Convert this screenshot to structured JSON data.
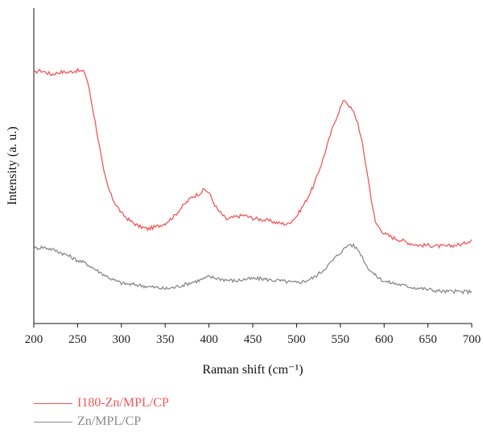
{
  "chart_data": {
    "type": "line",
    "title": "",
    "xlabel": "Raman shift (cm⁻¹)",
    "ylabel": "Intensity (a. u.)",
    "xlim": [
      200,
      700
    ],
    "ylim": [
      0,
      1
    ],
    "x_ticks": [
      "200",
      "250",
      "300",
      "350",
      "400",
      "450",
      "500",
      "550",
      "600",
      "650",
      "700"
    ],
    "y_ticks_shown": false,
    "grid": false,
    "legend_position": "bottom-left, below plot",
    "series": [
      {
        "name": "I180-Zn/MPL/CP",
        "color": "#f0585a",
        "x": [
          200,
          205,
          210,
          220,
          230,
          240,
          250,
          258,
          262,
          266,
          270,
          275,
          280,
          285,
          290,
          300,
          310,
          320,
          330,
          340,
          350,
          360,
          370,
          380,
          390,
          395,
          400,
          405,
          410,
          420,
          430,
          440,
          450,
          460,
          470,
          480,
          490,
          500,
          510,
          520,
          530,
          540,
          545,
          550,
          555,
          560,
          565,
          570,
          575,
          580,
          585,
          590,
          600,
          610,
          620,
          630,
          640,
          650,
          660,
          670,
          680,
          690,
          700
        ],
        "y": [
          0.792,
          0.802,
          0.8,
          0.79,
          0.797,
          0.797,
          0.802,
          0.797,
          0.76,
          0.7,
          0.64,
          0.56,
          0.48,
          0.43,
          0.395,
          0.35,
          0.325,
          0.308,
          0.3,
          0.307,
          0.318,
          0.34,
          0.372,
          0.4,
          0.414,
          0.425,
          0.415,
          0.385,
          0.36,
          0.33,
          0.338,
          0.343,
          0.334,
          0.33,
          0.325,
          0.318,
          0.315,
          0.34,
          0.385,
          0.44,
          0.52,
          0.61,
          0.65,
          0.685,
          0.71,
          0.69,
          0.67,
          0.635,
          0.57,
          0.49,
          0.4,
          0.32,
          0.285,
          0.272,
          0.264,
          0.254,
          0.248,
          0.248,
          0.246,
          0.244,
          0.248,
          0.252,
          0.266
        ]
      },
      {
        "name": "Zn/MPL/CP",
        "color": "#8a8a8a",
        "x": [
          200,
          210,
          220,
          230,
          240,
          250,
          260,
          270,
          280,
          290,
          300,
          310,
          320,
          330,
          340,
          350,
          360,
          370,
          380,
          390,
          400,
          410,
          420,
          430,
          440,
          450,
          460,
          470,
          480,
          490,
          500,
          510,
          520,
          530,
          540,
          550,
          555,
          560,
          565,
          570,
          575,
          580,
          590,
          600,
          610,
          620,
          630,
          640,
          650,
          660,
          670,
          680,
          690,
          700
        ],
        "y": [
          0.238,
          0.242,
          0.236,
          0.226,
          0.214,
          0.2,
          0.19,
          0.172,
          0.155,
          0.139,
          0.128,
          0.124,
          0.122,
          0.117,
          0.114,
          0.11,
          0.114,
          0.122,
          0.13,
          0.138,
          0.148,
          0.143,
          0.138,
          0.135,
          0.14,
          0.142,
          0.142,
          0.138,
          0.136,
          0.132,
          0.129,
          0.135,
          0.146,
          0.168,
          0.196,
          0.226,
          0.238,
          0.252,
          0.246,
          0.235,
          0.212,
          0.182,
          0.152,
          0.134,
          0.128,
          0.122,
          0.116,
          0.112,
          0.108,
          0.104,
          0.101,
          0.102,
          0.1,
          0.102
        ]
      }
    ]
  }
}
